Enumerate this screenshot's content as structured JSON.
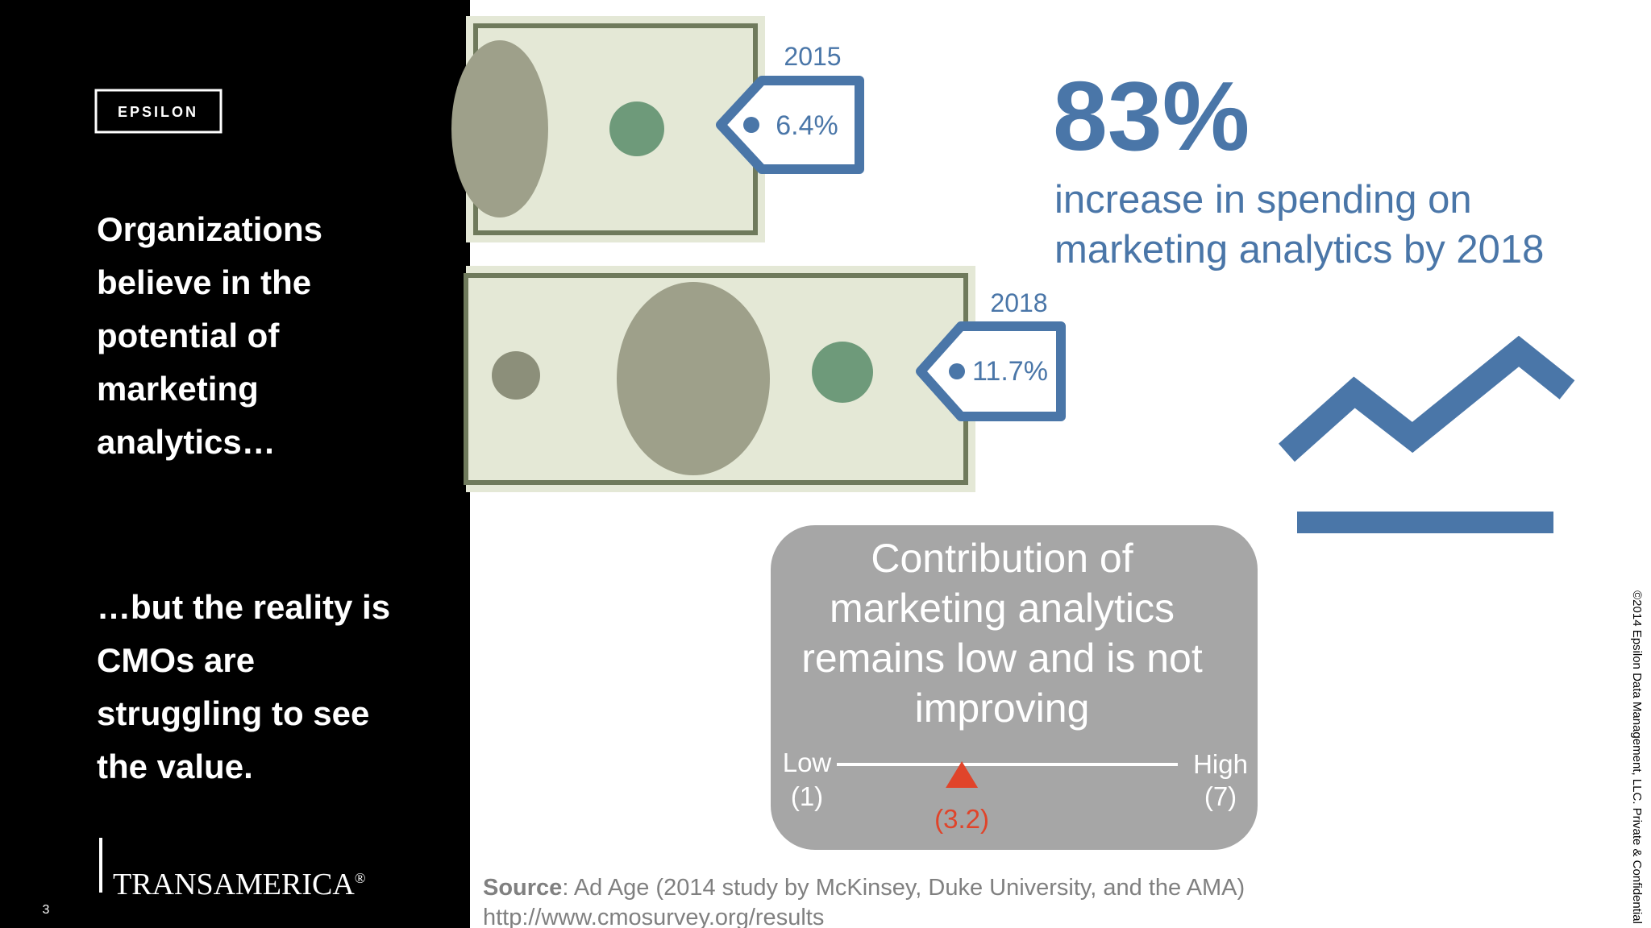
{
  "left_panel": {
    "logo_top": "EPSILON",
    "headline": [
      "Organizations",
      "believe in the",
      "potential of",
      "marketing",
      "analytics…"
    ],
    "reality": [
      "…but the reality is",
      "CMOs are",
      "struggling to see",
      "the value."
    ],
    "logo_bottom": "TRANSAMERICA",
    "logo_bottom_mark": "®",
    "page_number": "3"
  },
  "price_tags": [
    {
      "year": "2015",
      "value": "6.4%"
    },
    {
      "year": "2018",
      "value": "11.7%"
    }
  ],
  "stat": {
    "number": "83%",
    "text": [
      "increase in spending on",
      "marketing analytics by 2018"
    ]
  },
  "contribution_box": {
    "text": [
      "Contribution of",
      "marketing analytics",
      "remains low and is not",
      "improving"
    ],
    "scale": {
      "low_label": "Low",
      "high_label": "High",
      "min": {
        "value": 1,
        "label": "(1)"
      },
      "max": {
        "value": 7,
        "label": "(7)"
      },
      "marker": {
        "value": 3.2,
        "label": "(3.2)"
      }
    }
  },
  "source": {
    "label": "Source",
    "text": ": Ad Age (2014 study by McKinsey, Duke University, and the AMA)",
    "url": "http://www.cmosurvey.org/results"
  },
  "copyright": "©2014 Epsilon Data Management, LLC. Private & Confidential"
}
